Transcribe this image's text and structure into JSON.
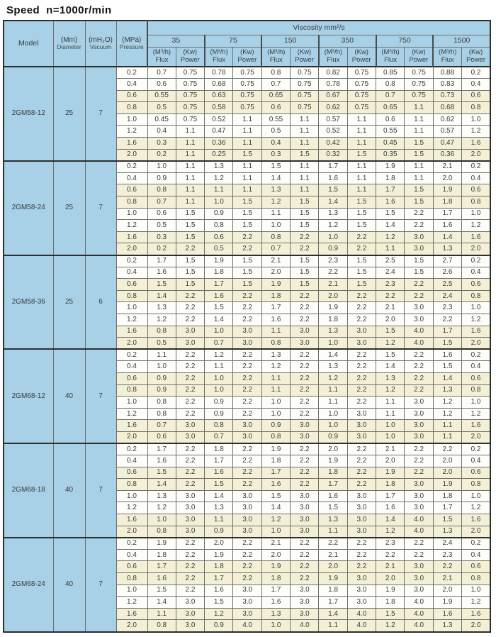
{
  "title": "Speed  n=1000r/min",
  "colors": {
    "header_blue": "#a8d1e7",
    "row_cream": "#f4f0d6",
    "row_white": "#fdfdf9",
    "border_gray": "#6f6f6f",
    "border_dark": "#2e2e2e"
  },
  "table": {
    "header": {
      "model": "Model",
      "diameter_line1": "(Mm)",
      "diameter_line2": "Diameter",
      "vacuum_line1": "(mH₂O)",
      "vacuum_line2": "Vacuum",
      "pressure_line1": "(MPa)",
      "pressure_line2": "Pressure",
      "viscosity": "Viscosity mm²/s",
      "viscosity_values": [
        "35",
        "75",
        "150",
        "350",
        "750",
        "1500"
      ],
      "flux_line1": "(M³/h)",
      "flux_line2": "Flux",
      "power_line1": "(Kw)",
      "power_line2": "Power"
    },
    "groups": [
      {
        "model": "2GM58-12",
        "diameter": "25",
        "vacuum": "7",
        "rows": [
          {
            "pressure": "0.2",
            "values": [
              "0.7",
              "0.75",
              "0.78",
              "0.75",
              "0.8",
              "0.75",
              "0.82",
              "0.75",
              "0.85",
              "0.75",
              "0.88",
              "0.2"
            ]
          },
          {
            "pressure": "0.4",
            "values": [
              "0.6",
              "0.75",
              "0.68",
              "0.75",
              "0.7",
              "0.75",
              "0.78",
              "0.75",
              "0.8",
              "0.75",
              "0.83",
              "0.4"
            ]
          },
          {
            "pressure": "0.6",
            "values": [
              "0.55",
              "0.75",
              "0.63",
              "0.75",
              "0.65",
              "0.75",
              "0.67",
              "0.75",
              "0.7",
              "0.75",
              "0.73",
              "0.6"
            ]
          },
          {
            "pressure": "0.8",
            "values": [
              "0.5",
              "0.75",
              "0.58",
              "0.75",
              "0.6",
              "0.75",
              "0.62",
              "0.75",
              "0.65",
              "1.1",
              "0.68",
              "0.8"
            ]
          },
          {
            "pressure": "1.0",
            "values": [
              "0.45",
              "0.75",
              "0.52",
              "1.1",
              "0.55",
              "1.1",
              "0.57",
              "1.1",
              "0.6",
              "1.1",
              "0.62",
              "1.0"
            ]
          },
          {
            "pressure": "1.2",
            "values": [
              "0.4",
              "1.1",
              "0.47",
              "1.1",
              "0.5",
              "1.1",
              "0.52",
              "1.1",
              "0.55",
              "1.1",
              "0.57",
              "1.2"
            ]
          },
          {
            "pressure": "1.6",
            "values": [
              "0.3",
              "1.1",
              "0.36",
              "1.1",
              "0.4",
              "1.1",
              "0.42",
              "1.1",
              "0.45",
              "1.5",
              "0.47",
              "1.6"
            ]
          },
          {
            "pressure": "2.0",
            "values": [
              "0.2",
              "1.1",
              "0.25",
              "1.5",
              "0.3",
              "1.5",
              "0.32",
              "1.5",
              "0.35",
              "1.5",
              "0.36",
              "2.0"
            ]
          }
        ]
      },
      {
        "model": "2GM58-24",
        "diameter": "25",
        "vacuum": "7",
        "rows": [
          {
            "pressure": "0.2",
            "values": [
              "1.0",
              "1.1",
              "1.3",
              "1.1",
              "1.5",
              "1.1",
              "1.7",
              "1.1",
              "1.9",
              "1.1",
              "2.1",
              "0.2"
            ]
          },
          {
            "pressure": "0.4",
            "values": [
              "0.9",
              "1.1",
              "1.2",
              "1.1",
              "1.4",
              "1.1",
              "1.6",
              "1.1",
              "1.8",
              "1.1",
              "2.0",
              "0.4"
            ]
          },
          {
            "pressure": "0.6",
            "values": [
              "0.8",
              "1.1",
              "1.1",
              "1.1",
              "1.3",
              "1.1",
              "1.5",
              "1.1",
              "1.7",
              "1.5",
              "1.9",
              "0.6"
            ]
          },
          {
            "pressure": "0.8",
            "values": [
              "0.7",
              "1.1",
              "1.0",
              "1.5",
              "1.2",
              "1.5",
              "1.4",
              "1.5",
              "1.6",
              "1.5",
              "1.8",
              "0.8"
            ]
          },
          {
            "pressure": "1.0",
            "values": [
              "0.6",
              "1.5",
              "0.9",
              "1.5",
              "1.1",
              "1.5",
              "1.3",
              "1.5",
              "1.5",
              "2.2",
              "1.7",
              "1.0"
            ]
          },
          {
            "pressure": "1.2",
            "values": [
              "0.5",
              "1.5",
              "0.8",
              "1.5",
              "1.0",
              "1.5",
              "1.2",
              "1.5",
              "1.4",
              "2.2",
              "1.6",
              "1.2"
            ]
          },
          {
            "pressure": "1.6",
            "values": [
              "0.3",
              "1.5",
              "0.6",
              "2.2",
              "0.8",
              "2.2",
              "1.0",
              "2.2",
              "1.2",
              "3.0",
              "1.4",
              "1.6"
            ]
          },
          {
            "pressure": "2.0",
            "values": [
              "0.2",
              "2.2",
              "0.5",
              "2.2",
              "0.7",
              "2.2",
              "0.9",
              "2.2",
              "1.1",
              "3.0",
              "1.3",
              "2.0"
            ]
          }
        ]
      },
      {
        "model": "2GM58-36",
        "diameter": "25",
        "vacuum": "6",
        "rows": [
          {
            "pressure": "0.2",
            "values": [
              "1.7",
              "1.5",
              "1.9",
              "1.5",
              "2.1",
              "1.5",
              "2.3",
              "1.5",
              "2.5",
              "1.5",
              "2.7",
              "0.2"
            ]
          },
          {
            "pressure": "0.4",
            "values": [
              "1.6",
              "1.5",
              "1.8",
              "1.5",
              "2.0",
              "1.5",
              "2.2",
              "1.5",
              "2.4",
              "1.5",
              "2.6",
              "0.4"
            ]
          },
          {
            "pressure": "0.6",
            "values": [
              "1.5",
              "1.5",
              "1.7",
              "1.5",
              "1.9",
              "1.5",
              "2.1",
              "1.5",
              "2.3",
              "2.2",
              "2.5",
              "0.6"
            ]
          },
          {
            "pressure": "0.8",
            "values": [
              "1.4",
              "2.2",
              "1.6",
              "2.2",
              "1.8",
              "2.2",
              "2.0",
              "2.2",
              "2.2",
              "2.2",
              "2.4",
              "0.8"
            ]
          },
          {
            "pressure": "1.0",
            "values": [
              "1.3",
              "2.2",
              "1.5",
              "2.2",
              "1.7",
              "2.2",
              "1.9",
              "2.2",
              "2.1",
              "3.0",
              "2.3",
              "1.0"
            ]
          },
          {
            "pressure": "1.2",
            "values": [
              "1.2",
              "2.2",
              "1.4",
              "2.2",
              "1.6",
              "2.2",
              "1.8",
              "2.2",
              "2.0",
              "3.0",
              "2.2",
              "1.2"
            ]
          },
          {
            "pressure": "1.6",
            "values": [
              "0.8",
              "3.0",
              "1.0",
              "3.0",
              "1.1",
              "3.0",
              "1.3",
              "3.0",
              "1.5",
              "4.0",
              "1.7",
              "1.6"
            ]
          },
          {
            "pressure": "2.0",
            "values": [
              "0.5",
              "3.0",
              "0.7",
              "3.0",
              "0.8",
              "3.0",
              "1.0",
              "3.0",
              "1.2",
              "4.0",
              "1.5",
              "2.0"
            ]
          }
        ]
      },
      {
        "model": "2GM68-12",
        "diameter": "40",
        "vacuum": "7",
        "rows": [
          {
            "pressure": "0.2",
            "values": [
              "1.1",
              "2.2",
              "1.2",
              "2.2",
              "1.3",
              "2.2",
              "1.4",
              "2.2",
              "1.5",
              "2.2",
              "1.6",
              "0.2"
            ]
          },
          {
            "pressure": "0.4",
            "values": [
              "1.0",
              "2.2",
              "1.1",
              "2.2",
              "1.2",
              "2.2",
              "1.3",
              "2.2",
              "1.4",
              "2.2",
              "1.5",
              "0.4"
            ]
          },
          {
            "pressure": "0.6",
            "values": [
              "0.9",
              "2.2",
              "1.0",
              "2.2",
              "1.1",
              "2.2",
              "1.2",
              "2.2",
              "1.3",
              "2.2",
              "1.4",
              "0.6"
            ]
          },
          {
            "pressure": "0.8",
            "values": [
              "0.9",
              "2.2",
              "1.0",
              "2.2",
              "1.1",
              "2.2",
              "1.1",
              "2.2",
              "1.2",
              "2.2",
              "1.3",
              "0.8"
            ]
          },
          {
            "pressure": "1.0",
            "values": [
              "0.8",
              "2.2",
              "0.9",
              "2.2",
              "1.0",
              "2.2",
              "1.1",
              "2.2",
              "1.1",
              "3.0",
              "1.2",
              "1.0"
            ]
          },
          {
            "pressure": "1.2",
            "values": [
              "0.8",
              "2.2",
              "0.9",
              "2.2",
              "1.0",
              "2.2",
              "1.0",
              "3.0",
              "1.1",
              "3.0",
              "1.2",
              "1.2"
            ]
          },
          {
            "pressure": "1.6",
            "values": [
              "0.7",
              "3.0",
              "0.8",
              "3.0",
              "0.9",
              "3.0",
              "1.0",
              "3.0",
              "1.0",
              "3.0",
              "1.1",
              "1.6"
            ]
          },
          {
            "pressure": "2.0",
            "values": [
              "0.6",
              "3.0",
              "0.7",
              "3.0",
              "0.8",
              "3.0",
              "0.9",
              "3.0",
              "1.0",
              "3.0",
              "1.1",
              "2.0"
            ]
          }
        ]
      },
      {
        "model": "2GM68-18",
        "diameter": "40",
        "vacuum": "7",
        "rows": [
          {
            "pressure": "0.2",
            "values": [
              "1.7",
              "2.2",
              "1.8",
              "2.2",
              "1.9",
              "2.2",
              "2.0",
              "2.2",
              "2.1",
              "2.2",
              "2.2",
              "0.2"
            ]
          },
          {
            "pressure": "0.4",
            "values": [
              "1.6",
              "2.2",
              "1.7",
              "2.2",
              "1.8",
              "2.2",
              "1.9",
              "2.2",
              "2.0",
              "2.2",
              "2.0",
              "0.4"
            ]
          },
          {
            "pressure": "0.6",
            "values": [
              "1.5",
              "2.2",
              "1.6",
              "2.2",
              "1.7",
              "2.2",
              "1.8",
              "2.2",
              "1.9",
              "2.2",
              "2.0",
              "0.6"
            ]
          },
          {
            "pressure": "0.8",
            "values": [
              "1.4",
              "2.2",
              "1.5",
              "2.2",
              "1.6",
              "2.2",
              "1.7",
              "2.2",
              "1.8",
              "3.0",
              "1.9",
              "0.8"
            ]
          },
          {
            "pressure": "1.0",
            "values": [
              "1.3",
              "3.0",
              "1.4",
              "3.0",
              "1.5",
              "3.0",
              "1.6",
              "3.0",
              "1.7",
              "3.0",
              "1.8",
              "1.0"
            ]
          },
          {
            "pressure": "1.2",
            "values": [
              "1.2",
              "3.0",
              "1.3",
              "3.0",
              "1.4",
              "3.0",
              "1.5",
              "3.0",
              "1.6",
              "3.0",
              "1.7",
              "1.2"
            ]
          },
          {
            "pressure": "1.6",
            "values": [
              "1.0",
              "3.0",
              "1.1",
              "3.0",
              "1.2",
              "3.0",
              "1.3",
              "3.0",
              "1.4",
              "4.0",
              "1.5",
              "1.6"
            ]
          },
          {
            "pressure": "2.0",
            "values": [
              "0.8",
              "3.0",
              "0.9",
              "3.0",
              "1.0",
              "3.0",
              "1.1",
              "3.0",
              "1.2",
              "4.0",
              "1.3",
              "2.0"
            ]
          }
        ]
      },
      {
        "model": "2GM68-24",
        "diameter": "40",
        "vacuum": "7",
        "rows": [
          {
            "pressure": "0.2",
            "values": [
              "1.9",
              "2.2",
              "2.0",
              "2.2",
              "2.1",
              "2.2",
              "2.2",
              "2.2",
              "2.3",
              "2.2",
              "2.4",
              "0.2"
            ]
          },
          {
            "pressure": "0.4",
            "values": [
              "1.8",
              "2.2",
              "1.9",
              "2.2",
              "2.0",
              "2.2",
              "2.1",
              "2.2",
              "2.2",
              "2.2",
              "2.3",
              "0.4"
            ]
          },
          {
            "pressure": "0.6",
            "values": [
              "1.7",
              "2.2",
              "1.8",
              "2.2",
              "1.9",
              "2.2",
              "2.0",
              "2.2",
              "2.1",
              "3.0",
              "2.2",
              "0.6"
            ]
          },
          {
            "pressure": "0.8",
            "values": [
              "1.6",
              "2.2",
              "1.7",
              "2.2",
              "1.8",
              "2.2",
              "1.9",
              "3.0",
              "2.0",
              "3.0",
              "2.1",
              "0.8"
            ]
          },
          {
            "pressure": "1.0",
            "values": [
              "1.5",
              "2.2",
              "1.6",
              "3.0",
              "1.7",
              "3.0",
              "1.8",
              "3.0",
              "1.9",
              "3.0",
              "2.0",
              "1.0"
            ]
          },
          {
            "pressure": "1.2",
            "values": [
              "1.4",
              "3.0",
              "1.5",
              "3.0",
              "1.6",
              "3.0",
              "1.7",
              "3.0",
              "1.8",
              "4.0",
              "1.9",
              "1.2"
            ]
          },
          {
            "pressure": "1.6",
            "values": [
              "1.1",
              "3.0",
              "1.2",
              "3.0",
              "1.3",
              "3.0",
              "1.4",
              "4.0",
              "1.5",
              "4.0",
              "1.6",
              "1.6"
            ]
          },
          {
            "pressure": "2.0",
            "values": [
              "0.8",
              "3.0",
              "0.9",
              "4.0",
              "1.0",
              "4.0",
              "1.1",
              "4.0",
              "1.2",
              "4.0",
              "1.3",
              "2.0"
            ]
          }
        ]
      }
    ]
  }
}
